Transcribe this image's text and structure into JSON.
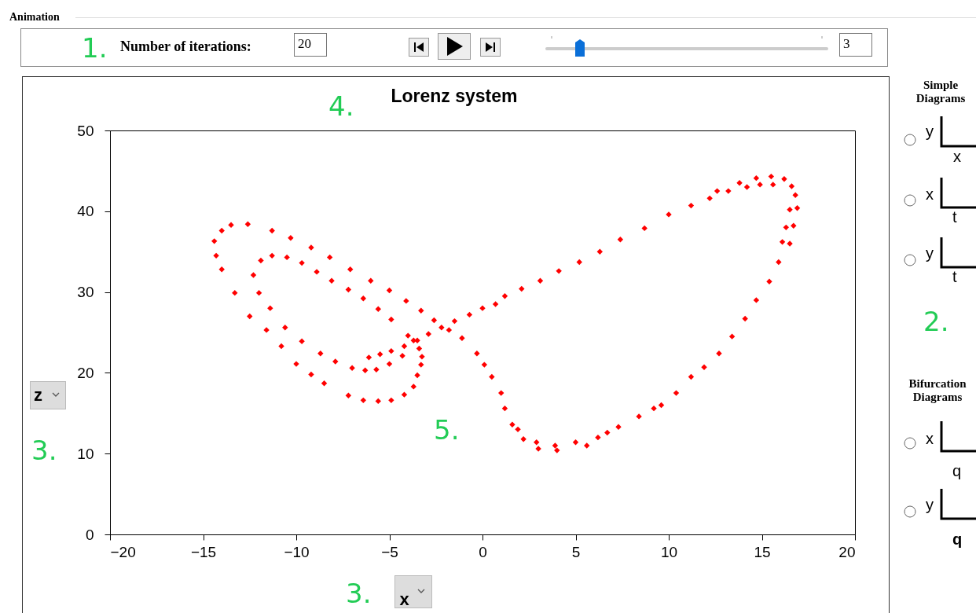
{
  "chart_data": {
    "type": "scatter",
    "title": "Lorenz system",
    "xlabel": "x",
    "ylabel": "z",
    "marker": "diamond",
    "grid": false,
    "legend": false,
    "xlim": [
      -20,
      20
    ],
    "xticks": [
      -20,
      -15,
      -10,
      -5,
      0,
      5,
      10,
      15,
      20
    ],
    "ylim": [
      0,
      50
    ],
    "yticks": [
      0,
      10,
      20,
      30,
      40,
      50
    ],
    "annotations": [
      "Animation",
      "1.",
      "Number of iterations:",
      "20",
      "3",
      "4.",
      "5.",
      "3.",
      "3.",
      "Simple Diagrams",
      "2.",
      "Bifurcation Diagrams",
      "y",
      "x",
      "x",
      "t",
      "y",
      "t",
      "x",
      "q",
      "y",
      "q"
    ],
    "series": [
      {
        "color": "#ff0000",
        "x": [
          -2.6,
          -3.3,
          -4.1,
          -5,
          -6,
          -7.1,
          -8.2,
          -9.2,
          -10.3,
          -11.3,
          -12.6,
          -13.5,
          -14,
          -14.4,
          -14.3,
          -14,
          -13.3,
          -12.5,
          -11.6,
          -10.8,
          -10,
          -9.2,
          -8.5,
          -7.2,
          -6.4,
          -5.6,
          -4.9,
          -4.2,
          -3.7,
          -3.5,
          -3.3,
          -3.25,
          -3.4,
          -3.7,
          -4,
          -4.9,
          -5.6,
          -6.4,
          -7.2,
          -8.1,
          -8.9,
          -9.7,
          -10.5,
          -11.3,
          -11.9,
          -12.3,
          -12,
          -11.4,
          -10.6,
          -9.7,
          -8.7,
          -7.9,
          -7,
          -6.3,
          -5.7,
          -5,
          -4.3,
          -6.1,
          -5.5,
          -4.9,
          -4.2,
          -3.5,
          -2.9,
          -2.2,
          -1.5,
          -0.7,
          0,
          0.7,
          1.2,
          2.1,
          3.1,
          4.1,
          5.2,
          6.3,
          7.4,
          8.7,
          10,
          11.2,
          12.2,
          12.6,
          13.2,
          13.8,
          14.2,
          14.7,
          14.9,
          15.5,
          15.6,
          16.2,
          16.6,
          16.8,
          16.9,
          16.5,
          16.7,
          16.3,
          16.5,
          16.1,
          15.9,
          15.4,
          14.7,
          14.1,
          13.4,
          12.7,
          11.9,
          11.2,
          10.4,
          9.6,
          9.2,
          8.4,
          7.3,
          6.7,
          6.2,
          5.6,
          5,
          4,
          3.9,
          2.9,
          3,
          2.2,
          1.9,
          1.6,
          1.2,
          1,
          0.5,
          0.1,
          -0.3,
          -1.1,
          -1.8
        ],
        "values": [
          26.5,
          27.7,
          28.9,
          30.2,
          31.4,
          32.8,
          34.3,
          35.5,
          36.7,
          37.6,
          38.4,
          38.3,
          37.6,
          36.3,
          34.5,
          32.8,
          29.9,
          27,
          25.3,
          23.3,
          21.1,
          19.8,
          18.7,
          17.2,
          16.6,
          16.5,
          16.6,
          17.3,
          18.3,
          19.7,
          21,
          22,
          23,
          24,
          24.6,
          26.6,
          27.9,
          29.2,
          30.3,
          31.4,
          32.5,
          33.6,
          34.3,
          34.5,
          33.9,
          32.1,
          29.9,
          28,
          25.6,
          23.9,
          22.4,
          21.4,
          20.6,
          20.3,
          20.4,
          21.1,
          22.1,
          21.9,
          22.3,
          22.7,
          23.3,
          24,
          24.8,
          25.6,
          26.4,
          27.2,
          28,
          28.5,
          29.5,
          30.4,
          31.4,
          32.6,
          33.7,
          35,
          36.5,
          37.9,
          39.6,
          40.7,
          41.6,
          42.5,
          42.5,
          43.5,
          43,
          44.1,
          43.3,
          44.3,
          43.3,
          44,
          43.1,
          42,
          40.4,
          40.2,
          38.2,
          38,
          36,
          36.2,
          33.7,
          31.3,
          29,
          26.7,
          24.5,
          22.4,
          20.7,
          19.5,
          17.5,
          16,
          15.6,
          14.6,
          13.3,
          12.6,
          12,
          11,
          11.4,
          10.4,
          11,
          11.4,
          10.6,
          11.8,
          13,
          13.6,
          15.6,
          17.5,
          19.5,
          21,
          22.4,
          24.3,
          25.3
        ]
      }
    ]
  }
}
